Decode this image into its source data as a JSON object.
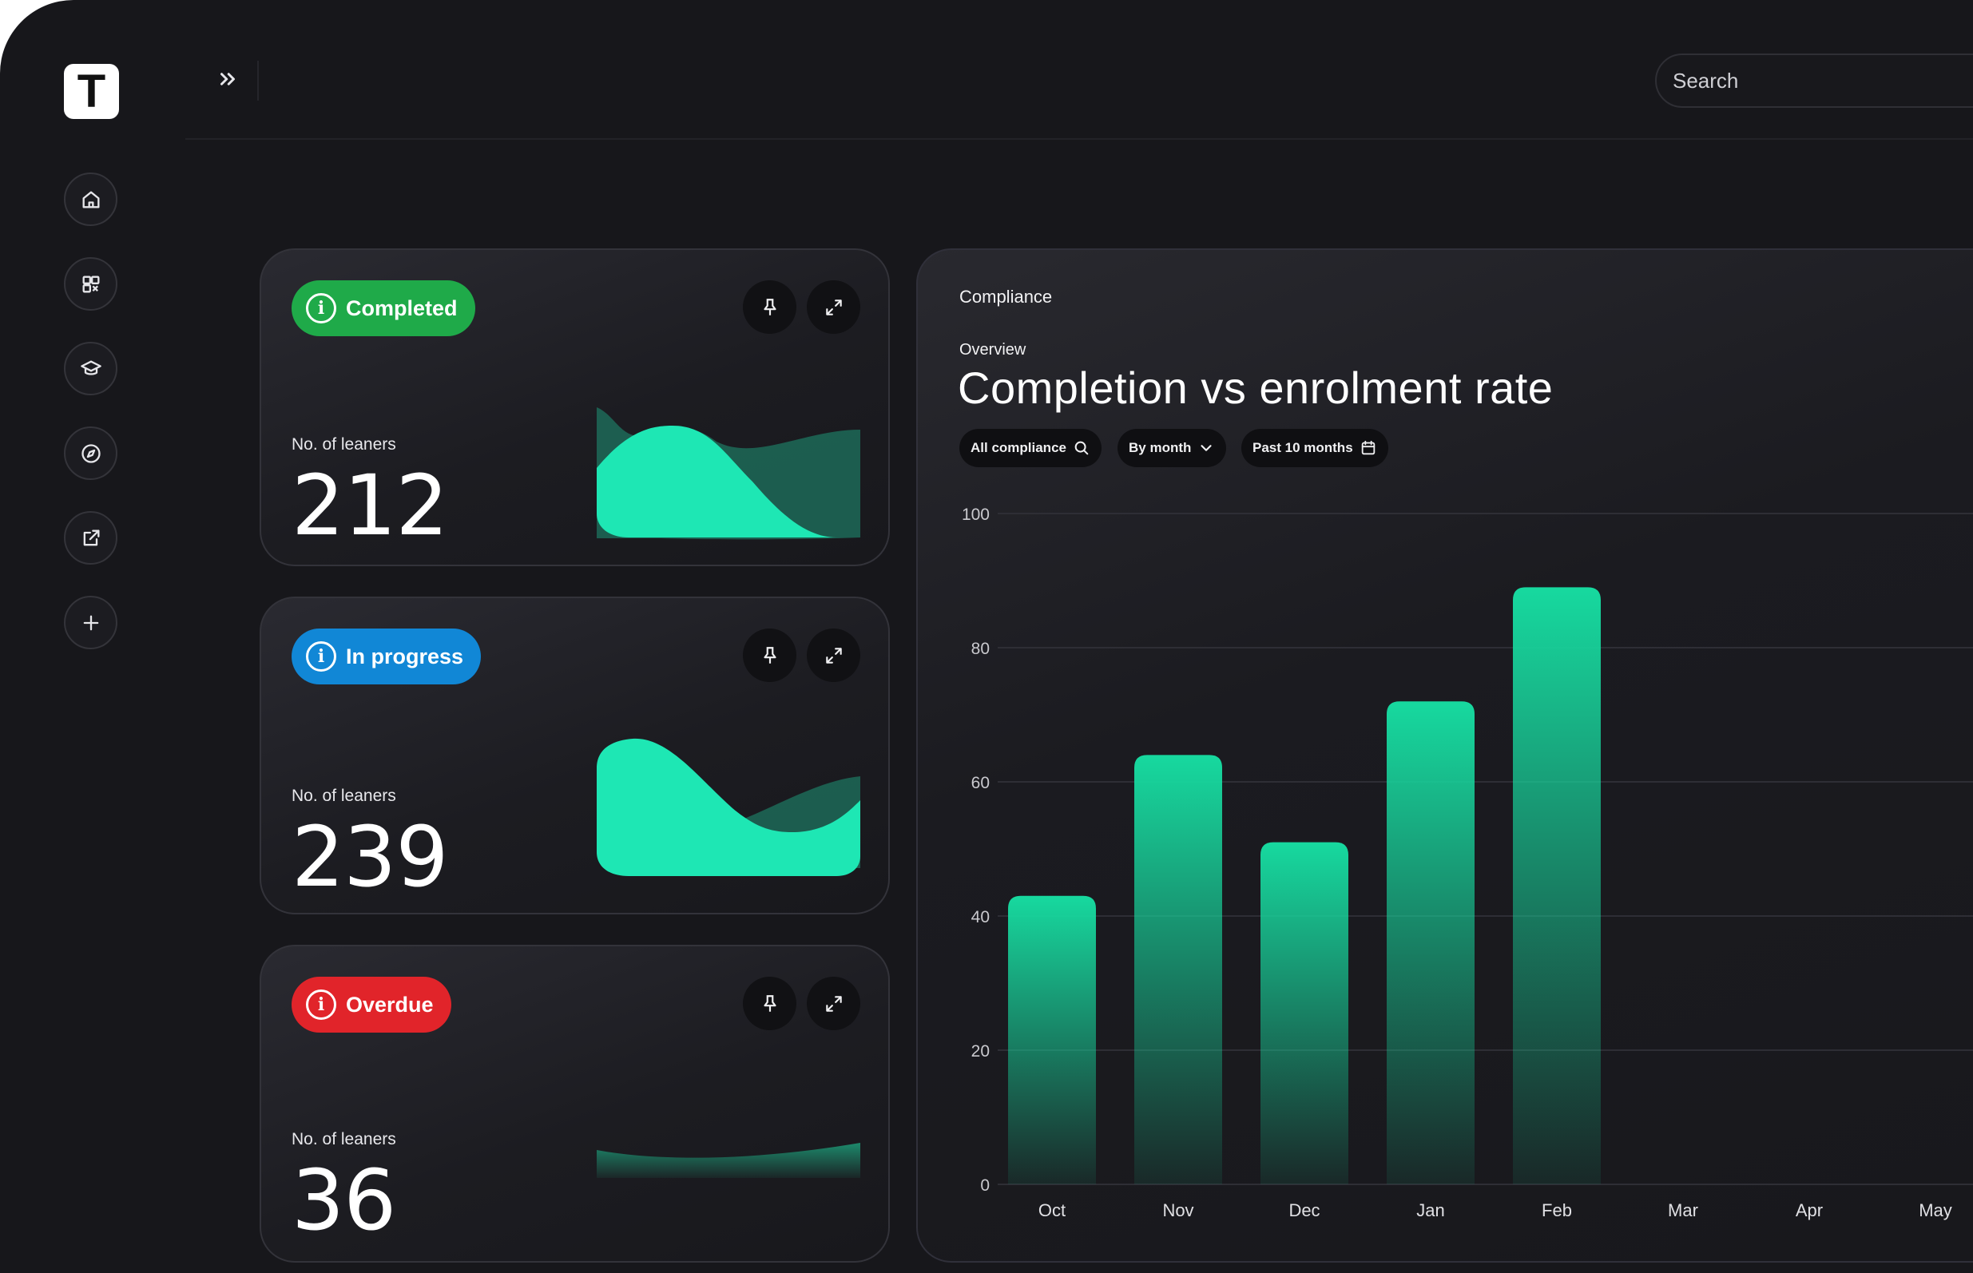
{
  "app": {
    "logo_letter": "T"
  },
  "topbar": {
    "search_placeholder": "Search"
  },
  "sidebar": {
    "items": [
      {
        "icon": "home-icon"
      },
      {
        "icon": "apps-icon"
      },
      {
        "icon": "graduation-cap-icon"
      },
      {
        "icon": "compass-icon"
      },
      {
        "icon": "external-link-icon"
      },
      {
        "icon": "plus-icon"
      }
    ]
  },
  "cards": [
    {
      "status": "Completed",
      "color": "#1faa49",
      "label": "No. of leaners",
      "value": "212"
    },
    {
      "status": "In progress",
      "color": "#1187d6",
      "label": "No. of leaners",
      "value": "239"
    },
    {
      "status": "Overdue",
      "color": "#e1242a",
      "label": "No. of leaners",
      "value": "36"
    }
  ],
  "compliance": {
    "section": "Compliance",
    "overline": "Overview",
    "title": "Completion vs enrolment rate",
    "filters": [
      "All compliance",
      "By month",
      "Past 10 months"
    ]
  },
  "chart_data": {
    "type": "bar",
    "categories": [
      "Oct",
      "Nov",
      "Dec",
      "Jan",
      "Feb",
      "Mar",
      "Apr",
      "May"
    ],
    "values": [
      43,
      64,
      51,
      72,
      89,
      null,
      null,
      null
    ],
    "ylim": [
      0,
      100
    ],
    "yticks": [
      0,
      20,
      40,
      60,
      80,
      100
    ],
    "grid": true,
    "bar_color": "#17d99f"
  }
}
